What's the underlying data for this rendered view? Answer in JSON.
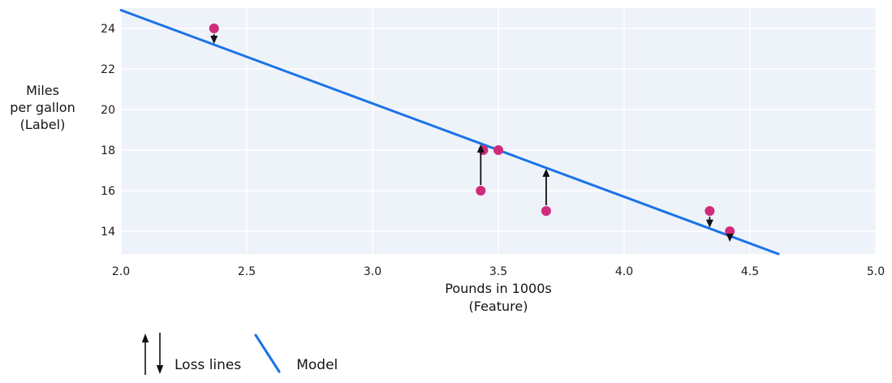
{
  "chart_data": {
    "type": "scatter",
    "xlabel_lines": [
      "Pounds in 1000s",
      "(Feature)"
    ],
    "ylabel_lines": [
      "Miles",
      "per gallon",
      "(Label)"
    ],
    "xlim": [
      2.0,
      5.0
    ],
    "ylim": [
      12.88,
      25.0
    ],
    "xticks": [
      2.0,
      2.5,
      3.0,
      3.5,
      4.0,
      4.5,
      5.0
    ],
    "xtick_labels": [
      "2.0",
      "2.5",
      "3.0",
      "3.5",
      "4.0",
      "4.5",
      "5.0"
    ],
    "yticks": [
      14,
      16,
      18,
      20,
      22,
      24
    ],
    "ytick_labels": [
      "14",
      "16",
      "18",
      "20",
      "22",
      "24"
    ],
    "grid": true,
    "points": [
      {
        "x": 2.37,
        "y": 24,
        "loss_arrow": "down"
      },
      {
        "x": 3.44,
        "y": 18,
        "loss_arrow": null
      },
      {
        "x": 3.5,
        "y": 18,
        "loss_arrow": null
      },
      {
        "x": 3.43,
        "y": 16,
        "loss_arrow": "up"
      },
      {
        "x": 3.69,
        "y": 15,
        "loss_arrow": "up"
      },
      {
        "x": 4.34,
        "y": 15,
        "loss_arrow": "down"
      },
      {
        "x": 4.42,
        "y": 14,
        "loss_arrow": "down"
      }
    ],
    "model_line": {
      "slope": -4.6,
      "intercept": 34.1
    },
    "legend": {
      "loss_label": "Loss lines",
      "model_label": "Model"
    },
    "colors": {
      "point": "#d02b7c",
      "model": "#1a73e8",
      "plot_bg": "#eef2f9",
      "grid": "#ffffff",
      "arrow": "#111111",
      "text": "#1c1c1c"
    }
  }
}
